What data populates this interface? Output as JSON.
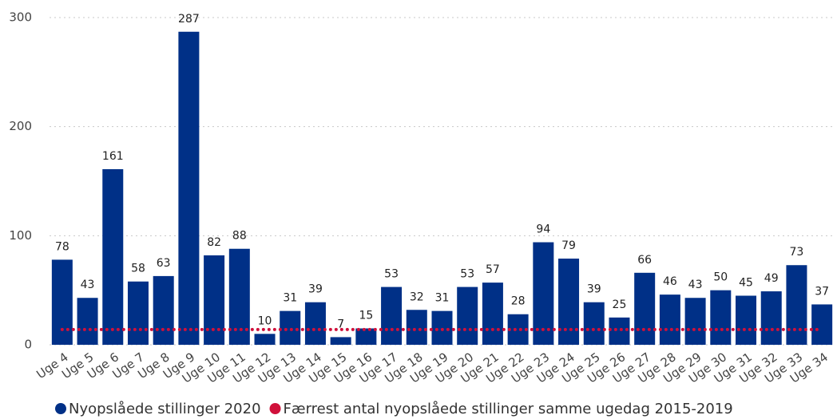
{
  "chart_data": {
    "type": "bar",
    "categories": [
      "Uge 4",
      "Uge 5",
      "Uge 6",
      "Uge 7",
      "Uge 8",
      "Uge 9",
      "Uge 10",
      "Uge 11",
      "Uge 12",
      "Uge 13",
      "Uge 14",
      "Uge 15",
      "Uge 16",
      "Uge 17",
      "Uge 18",
      "Uge 19",
      "Uge 20",
      "Uge 21",
      "Uge 22",
      "Uge 23",
      "Uge 24",
      "Uge 25",
      "Uge 26",
      "Uge 27",
      "Uge 28",
      "Uge 29",
      "Uge 30",
      "Uge 31",
      "Uge 32",
      "Uge 33",
      "Uge 34"
    ],
    "series": [
      {
        "name": "Nyopslåede stillinger 2020",
        "color": "#003087",
        "type": "bar",
        "values": [
          78,
          43,
          161,
          58,
          63,
          287,
          82,
          88,
          10,
          31,
          39,
          7,
          15,
          53,
          32,
          31,
          53,
          57,
          28,
          94,
          79,
          39,
          25,
          66,
          46,
          43,
          50,
          45,
          49,
          73,
          37
        ]
      },
      {
        "name": "Færrest antal nyopslåede stillinger samme ugedag 2015-2019",
        "color": "#d0103a",
        "type": "line",
        "values": [
          14,
          14,
          14,
          14,
          14,
          14,
          14,
          14,
          14,
          14,
          14,
          14,
          14,
          14,
          14,
          14,
          14,
          14,
          14,
          14,
          14,
          14,
          14,
          14,
          14,
          14,
          14,
          14,
          14,
          14,
          14
        ]
      }
    ],
    "ylim": [
      0,
      300
    ],
    "yticks": [
      0,
      100,
      200,
      300
    ],
    "grid": true
  }
}
